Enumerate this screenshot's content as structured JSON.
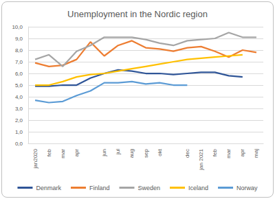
{
  "chart_data": {
    "type": "line",
    "title": "Unemployment in the Nordic region",
    "categories": [
      "jan2020",
      "feb",
      "mar",
      "apr",
      null,
      "jun",
      "jul",
      "aug",
      "sep",
      "okt",
      null,
      "dec",
      "jan 2021",
      "feb",
      "mar",
      "apr",
      "maj"
    ],
    "series": [
      {
        "name": "Denmark",
        "color": "#2f5597",
        "values": [
          4.9,
          4.9,
          5.0,
          5.0,
          5.6,
          6.0,
          6.3,
          6.2,
          6.0,
          6.0,
          5.9,
          6.0,
          6.1,
          6.1,
          5.8,
          5.7,
          null
        ]
      },
      {
        "name": "Finland",
        "color": "#ed7d31",
        "values": [
          6.9,
          6.6,
          6.7,
          7.2,
          8.7,
          7.5,
          8.4,
          8.8,
          8.2,
          8.1,
          7.9,
          8.2,
          8.3,
          7.9,
          7.4,
          8.0,
          7.8
        ]
      },
      {
        "name": "Sweden",
        "color": "#a5a5a5",
        "values": [
          7.2,
          7.6,
          6.6,
          7.9,
          8.4,
          9.1,
          9.1,
          9.1,
          8.9,
          8.6,
          8.4,
          8.8,
          8.9,
          9.0,
          9.5,
          9.1,
          9.1
        ]
      },
      {
        "name": "Iceland",
        "color": "#ffc000",
        "values": [
          5.0,
          5.0,
          5.3,
          5.7,
          5.9,
          6.0,
          6.2,
          6.4,
          6.6,
          6.8,
          7.0,
          7.2,
          7.3,
          7.4,
          7.5,
          7.6,
          null
        ]
      },
      {
        "name": "Norway",
        "color": "#5b9bd5",
        "values": [
          3.7,
          3.5,
          3.6,
          4.1,
          4.5,
          5.2,
          5.2,
          5.3,
          5.1,
          5.2,
          5.0,
          5.0,
          null,
          null,
          null,
          null,
          null
        ]
      }
    ],
    "ylim": [
      0,
      10
    ],
    "yticks": [
      {
        "value": 0,
        "label": "0,0"
      },
      {
        "value": 1,
        "label": "1,0"
      },
      {
        "value": 2,
        "label": "2,0"
      },
      {
        "value": 3,
        "label": "3,0"
      },
      {
        "value": 4,
        "label": "4,0"
      },
      {
        "value": 5,
        "label": "5,0"
      },
      {
        "value": 6,
        "label": "6,0"
      },
      {
        "value": 7,
        "label": "7,0"
      },
      {
        "value": 8,
        "label": "8,0"
      },
      {
        "value": 9,
        "label": "9,0"
      },
      {
        "value": 10,
        "label": "10,0"
      }
    ],
    "grid": true,
    "legend": "bottom"
  }
}
